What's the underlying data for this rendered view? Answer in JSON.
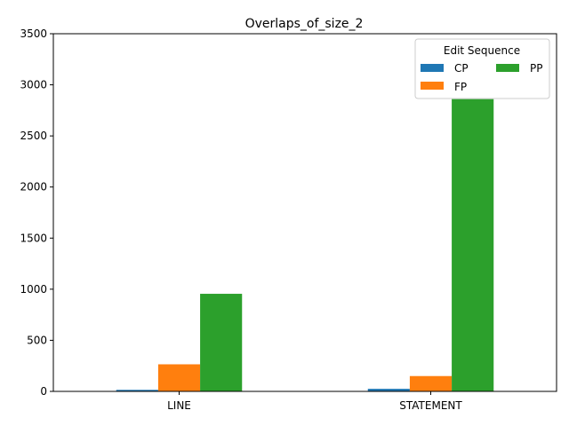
{
  "chart_data": {
    "type": "bar",
    "title": "Overlaps_of_size_2",
    "xlabel": "",
    "ylabel": "",
    "categories": [
      "LINE",
      "STATEMENT"
    ],
    "series": [
      {
        "name": "CP",
        "values": [
          15,
          25
        ],
        "color": "#1f77b4"
      },
      {
        "name": "FP",
        "values": [
          265,
          150
        ],
        "color": "#ff7f0e"
      },
      {
        "name": "PP",
        "values": [
          955,
          2860
        ],
        "color": "#2ca02c"
      }
    ],
    "ylim": [
      0,
      3500
    ],
    "yticks": [
      0,
      500,
      1000,
      1500,
      2000,
      2500,
      3000,
      3500
    ],
    "grid": false,
    "legend": {
      "title": "Edit Sequence",
      "placement": "top-right",
      "columns": 2
    }
  }
}
